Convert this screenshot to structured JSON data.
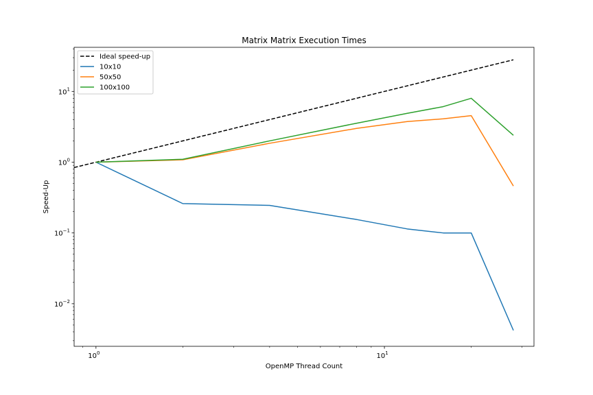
{
  "chart_data": {
    "type": "line",
    "title": "Matrix Matrix Execution Times",
    "xlabel": "OpenMP Thread Count",
    "ylabel": "Speed-Up",
    "xscale": "log",
    "yscale": "log",
    "xlim": [
      0.84,
      33
    ],
    "ylim": [
      0.0025,
      42
    ],
    "grid": false,
    "legend_position": "top-left",
    "x_ticks": [
      {
        "value": 1,
        "base": "10",
        "exp": "0"
      },
      {
        "value": 10,
        "base": "10",
        "exp": "1"
      }
    ],
    "y_ticks": [
      {
        "value": 0.01,
        "base": "10",
        "exp": "−2"
      },
      {
        "value": 0.1,
        "base": "10",
        "exp": "−1"
      },
      {
        "value": 1,
        "base": "10",
        "exp": "0"
      },
      {
        "value": 10,
        "base": "10",
        "exp": "1"
      }
    ],
    "series": [
      {
        "name": "Ideal speed-up",
        "color": "#000000",
        "dashed": true,
        "x": [
          0.84,
          28
        ],
        "values": [
          0.84,
          28
        ]
      },
      {
        "name": "10x10",
        "color": "#1f77b4",
        "dashed": false,
        "x": [
          1,
          2,
          4,
          8,
          12,
          16,
          20,
          28
        ],
        "values": [
          1.0,
          0.26,
          0.245,
          0.155,
          0.114,
          0.1,
          0.1,
          0.0042
        ]
      },
      {
        "name": "50x50",
        "color": "#ff7f0e",
        "dashed": false,
        "x": [
          1,
          2,
          4,
          8,
          12,
          16,
          20,
          28
        ],
        "values": [
          1.0,
          1.08,
          1.85,
          3.0,
          3.75,
          4.1,
          4.55,
          0.46
        ]
      },
      {
        "name": "100x100",
        "color": "#2ca02c",
        "dashed": false,
        "x": [
          1,
          2,
          4,
          8,
          12,
          16,
          20,
          28
        ],
        "values": [
          1.0,
          1.1,
          2.0,
          3.55,
          4.9,
          6.1,
          8.0,
          2.4
        ]
      }
    ]
  }
}
